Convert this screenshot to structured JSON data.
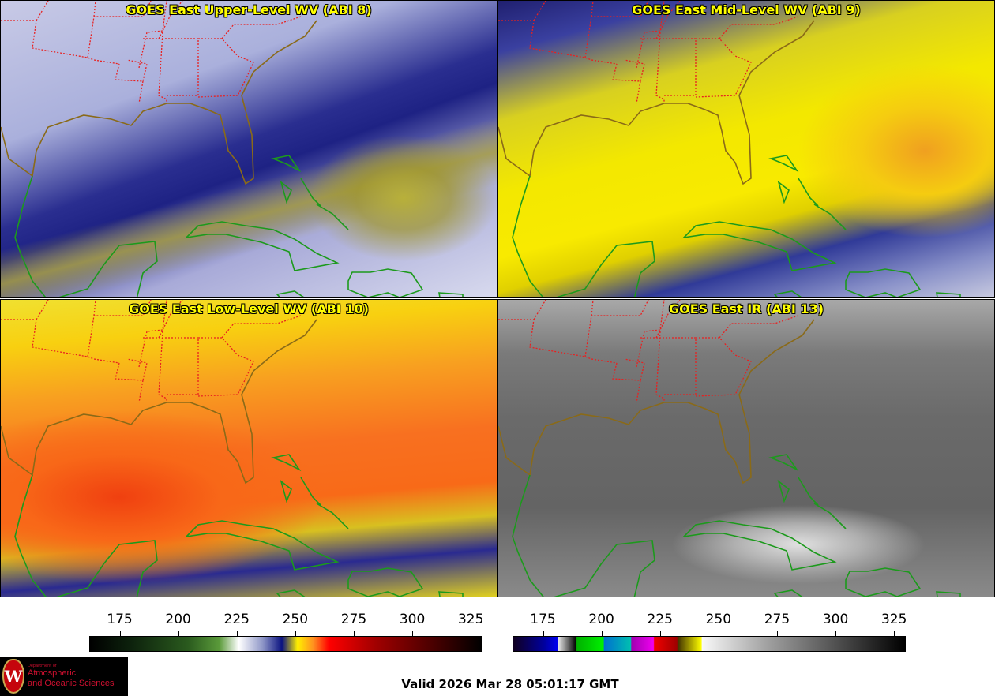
{
  "panels": [
    {
      "title": "GOES East Upper-Level WV (ABI 8)"
    },
    {
      "title": "GOES East Mid-Level WV (ABI 9)"
    },
    {
      "title": "GOES East Low-Level WV (ABI 10)"
    },
    {
      "title": "GOES East IR (ABI 13)"
    }
  ],
  "colorbars": [
    {
      "name": "water-vapor-colorbar",
      "range": [
        162,
        330
      ],
      "ticks": [
        "175",
        "200",
        "225",
        "250",
        "275",
        "300",
        "325"
      ]
    },
    {
      "name": "ir-colorbar",
      "range": [
        162,
        330
      ],
      "ticks": [
        "175",
        "200",
        "225",
        "250",
        "275",
        "300",
        "325"
      ]
    }
  ],
  "logo": {
    "line1": "Department of",
    "line2": "Atmospheric",
    "line3": "and Oceanic Sciences",
    "crest": "W"
  },
  "valid": "Valid 2026 Mar 28 05:01:17 GMT",
  "colors": {
    "title": "#ffff00",
    "coastline": "#1c9a1c",
    "state_border": "#e82020"
  }
}
